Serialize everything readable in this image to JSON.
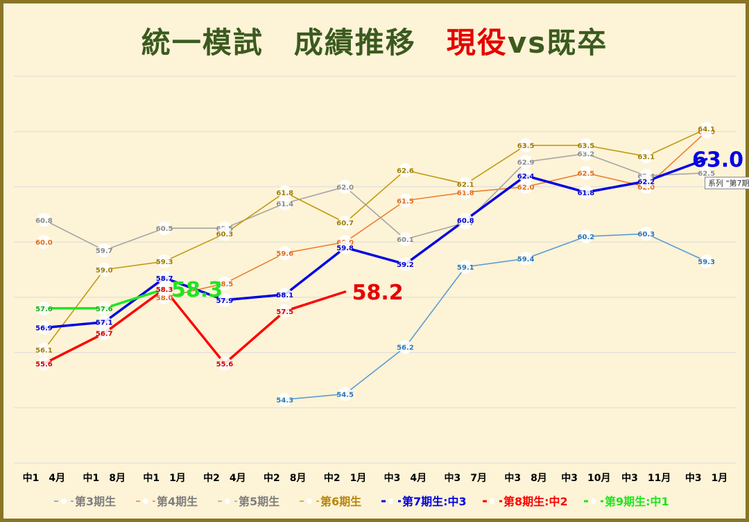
{
  "title": {
    "main": "統一模試　成績推移　",
    "highlight": "現役",
    "vs": "vs",
    "rest": "既卒"
  },
  "tooltip_text": "系列 \"第7期",
  "chart_data": {
    "type": "line",
    "categories": [
      "中1　4月",
      "中1　8月",
      "中1　1月",
      "中2　4月",
      "中2　8月",
      "中2　1月",
      "中3　4月",
      "中3　7月",
      "中3　8月",
      "中3　10月",
      "中3　11月",
      "中3　1月"
    ],
    "ylim": [
      52.0,
      66.0
    ],
    "grid": true,
    "legend_position": "bottom",
    "series": [
      {
        "name": "第3期生",
        "color": "#5b9bd5",
        "width": 1.6,
        "label_color": "#2e75b6",
        "label_size": 10,
        "values": [
          null,
          null,
          null,
          null,
          54.3,
          54.5,
          56.2,
          59.1,
          59.4,
          60.2,
          60.3,
          59.3
        ]
      },
      {
        "name": "第4期生",
        "color": "#ed7d31",
        "width": 1.6,
        "label_color": "#e06a1c",
        "label_size": 10,
        "values": [
          60.0,
          null,
          58.0,
          58.5,
          59.6,
          60.0,
          61.5,
          61.8,
          62.0,
          62.5,
          62.0,
          64.0
        ]
      },
      {
        "name": "第5期生",
        "color": "#a5a5a5",
        "width": 1.6,
        "label_color": "#8a8a8a",
        "label_size": 10,
        "values": [
          60.8,
          59.7,
          60.5,
          60.5,
          61.4,
          62.0,
          60.1,
          60.7,
          62.9,
          63.2,
          62.4,
          62.5
        ]
      },
      {
        "name": "第6期生",
        "color": "#c09a10",
        "width": 1.6,
        "label_color": "#a07c00",
        "label_size": 10,
        "values": [
          56.1,
          59.0,
          59.3,
          60.3,
          61.8,
          60.7,
          62.6,
          62.1,
          63.5,
          63.5,
          63.1,
          64.1
        ]
      },
      {
        "name": "第7期生:中3",
        "color": "#0000e6",
        "width": 3.5,
        "label_color": "#0000cc",
        "label_size": 10,
        "values": [
          56.9,
          57.1,
          58.7,
          57.9,
          58.1,
          59.8,
          59.2,
          60.8,
          62.4,
          61.8,
          62.2,
          63.0
        ],
        "big_label": {
          "index": 11,
          "text": "63.0",
          "color": "#0000e6"
        }
      },
      {
        "name": "第8期生:中2",
        "color": "#ff0000",
        "width": 3.5,
        "label_color": "#cc0000",
        "label_size": 10,
        "values": [
          55.6,
          56.7,
          58.3,
          55.6,
          57.5,
          58.2,
          null,
          null,
          null,
          null,
          null,
          null
        ],
        "big_label": {
          "index": 5,
          "text": "58.2",
          "color": "#e60000"
        }
      },
      {
        "name": "第9期生:中1",
        "color": "#1ee61e",
        "width": 3.5,
        "label_color": "#1aaa1a",
        "label_size": 10,
        "values": [
          57.6,
          57.6,
          58.3,
          null,
          null,
          null,
          null,
          null,
          null,
          null,
          null,
          null
        ],
        "big_label": {
          "index": 2,
          "text": "58.3",
          "color": "#1ee61e"
        }
      }
    ],
    "legend_text_colors": [
      "#7f7f7f",
      "#7f7f7f",
      "#7f7f7f",
      "#b8860b",
      "#0000e6",
      "#ff0000",
      "#1ee61e"
    ]
  }
}
